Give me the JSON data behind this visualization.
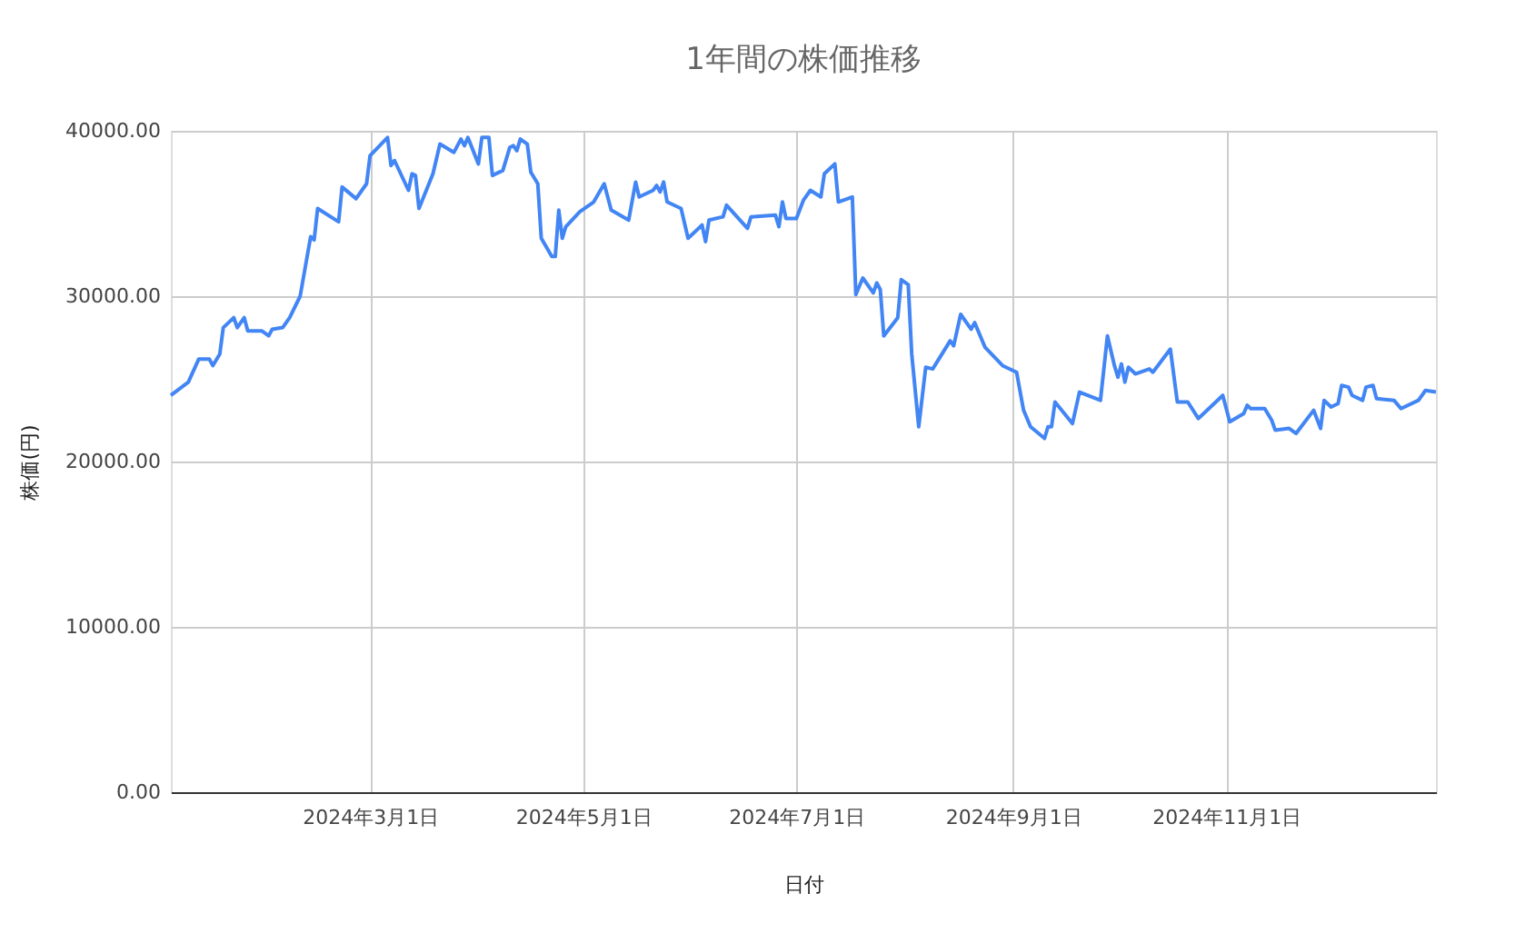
{
  "chart_data": {
    "type": "line",
    "title": "1年間の株価推移",
    "xlabel": "日付",
    "ylabel": "株価(円)",
    "x": [
      "2024-01-04",
      "2024-01-09",
      "2024-01-12",
      "2024-01-15",
      "2024-01-16",
      "2024-01-18",
      "2024-01-19",
      "2024-01-22",
      "2024-01-23",
      "2024-01-25",
      "2024-01-26",
      "2024-01-30",
      "2024-02-01",
      "2024-02-02",
      "2024-02-05",
      "2024-02-07",
      "2024-02-10",
      "2024-02-13",
      "2024-02-14",
      "2024-02-15",
      "2024-02-21",
      "2024-02-22",
      "2024-02-26",
      "2024-02-29",
      "2024-03-01",
      "2024-03-06",
      "2024-03-07",
      "2024-03-08",
      "2024-03-12",
      "2024-03-13",
      "2024-03-14",
      "2024-03-15",
      "2024-03-19",
      "2024-03-21",
      "2024-03-25",
      "2024-03-27",
      "2024-03-28",
      "2024-03-29",
      "2024-04-01",
      "2024-04-02",
      "2024-04-04",
      "2024-04-05",
      "2024-04-08",
      "2024-04-10",
      "2024-04-11",
      "2024-04-12",
      "2024-04-13",
      "2024-04-15",
      "2024-04-16",
      "2024-04-18",
      "2024-04-19",
      "2024-04-22",
      "2024-04-23",
      "2024-04-24",
      "2024-04-25",
      "2024-04-26",
      "2024-04-30",
      "2024-05-04",
      "2024-05-07",
      "2024-05-09",
      "2024-05-14",
      "2024-05-16",
      "2024-05-17",
      "2024-05-21",
      "2024-05-22",
      "2024-05-23",
      "2024-05-24",
      "2024-05-25",
      "2024-05-29",
      "2024-05-31",
      "2024-06-04",
      "2024-06-05",
      "2024-06-06",
      "2024-06-10",
      "2024-06-11",
      "2024-06-14",
      "2024-06-17",
      "2024-06-18",
      "2024-06-25",
      "2024-06-26",
      "2024-06-27",
      "2024-06-28",
      "2024-07-01",
      "2024-07-03",
      "2024-07-05",
      "2024-07-08",
      "2024-07-09",
      "2024-07-12",
      "2024-07-13",
      "2024-07-17",
      "2024-07-18",
      "2024-07-20",
      "2024-07-23",
      "2024-07-24",
      "2024-07-25",
      "2024-07-26",
      "2024-07-30",
      "2024-07-31",
      "2024-08-02",
      "2024-08-03",
      "2024-08-05",
      "2024-08-07",
      "2024-08-09",
      "2024-08-14",
      "2024-08-15",
      "2024-08-17",
      "2024-08-20",
      "2024-08-21",
      "2024-08-24",
      "2024-08-29",
      "2024-09-02",
      "2024-09-04",
      "2024-09-06",
      "2024-09-10",
      "2024-09-11",
      "2024-09-12",
      "2024-09-13",
      "2024-09-18",
      "2024-09-20",
      "2024-09-26",
      "2024-09-28",
      "2024-09-30",
      "2024-10-01",
      "2024-10-02",
      "2024-10-03",
      "2024-10-04",
      "2024-10-06",
      "2024-10-10",
      "2024-10-11",
      "2024-10-16",
      "2024-10-18",
      "2024-10-21",
      "2024-10-24",
      "2024-10-31",
      "2024-11-02",
      "2024-11-06",
      "2024-11-07",
      "2024-11-08",
      "2024-11-12",
      "2024-11-14",
      "2024-11-15",
      "2024-11-19",
      "2024-11-21",
      "2024-11-26",
      "2024-11-28",
      "2024-11-29",
      "2024-12-01",
      "2024-12-03",
      "2024-12-04",
      "2024-12-06",
      "2024-12-07",
      "2024-12-10",
      "2024-12-11",
      "2024-12-13",
      "2024-12-14",
      "2024-12-19",
      "2024-12-21",
      "2024-12-26",
      "2024-12-28",
      "2024-12-31"
    ],
    "series": [
      {
        "color": "#4285f4",
        "values": [
          24000,
          24800,
          26200,
          26200,
          25800,
          26500,
          28100,
          28700,
          28100,
          28700,
          27900,
          27900,
          27600,
          28000,
          28100,
          28700,
          30000,
          33600,
          33400,
          35300,
          34500,
          36600,
          35900,
          36800,
          38500,
          39600,
          37900,
          38200,
          36400,
          37400,
          37300,
          35300,
          37400,
          39200,
          38700,
          39500,
          39100,
          39600,
          38000,
          39600,
          39600,
          37300,
          37600,
          39000,
          39100,
          38800,
          39500,
          39200,
          37500,
          36800,
          33500,
          32400,
          32400,
          35200,
          33500,
          34200,
          35100,
          35700,
          36800,
          35200,
          34600,
          36900,
          36000,
          36400,
          36700,
          36300,
          36900,
          35700,
          35300,
          33500,
          34300,
          33300,
          34600,
          34800,
          35500,
          34800,
          34100,
          34800,
          34900,
          34200,
          35700,
          34700,
          34700,
          35800,
          36400,
          36000,
          37400,
          38000,
          35700,
          36000,
          30100,
          31100,
          30200,
          30800,
          30400,
          27600,
          28700,
          31000,
          30700,
          26500,
          22100,
          25700,
          25600,
          27300,
          27000,
          28900,
          28000,
          28400,
          26900,
          25800,
          25400,
          23100,
          22100,
          21400,
          22100,
          22100,
          23600,
          22300,
          24200,
          23700,
          27600,
          25800,
          25100,
          25900,
          24800,
          25700,
          25300,
          25600,
          25400,
          26800,
          23600,
          23600,
          22600,
          24000,
          22400,
          22900,
          23400,
          23200,
          23200,
          22500,
          21900,
          22000,
          21700,
          23100,
          22000,
          23700,
          23300,
          23500,
          24600,
          24500,
          24000,
          23700,
          24500,
          24600,
          23800,
          23700,
          23200,
          23700,
          24300,
          24200
        ]
      }
    ],
    "xlim": [
      "2024-01-04",
      "2024-12-31"
    ],
    "xticks": [
      {
        "value": "2024-03-01",
        "label": "2024年3月1日"
      },
      {
        "value": "2024-05-01",
        "label": "2024年5月1日"
      },
      {
        "value": "2024-07-01",
        "label": "2024年7月1日"
      },
      {
        "value": "2024-09-01",
        "label": "2024年9月1日"
      },
      {
        "value": "2024-11-01",
        "label": "2024年11月1日"
      }
    ],
    "ylim": [
      0,
      40000
    ],
    "yticks": [
      {
        "value": 0,
        "label": "0.00"
      },
      {
        "value": 10000,
        "label": "10000.00"
      },
      {
        "value": 20000,
        "label": "20000.00"
      },
      {
        "value": 30000,
        "label": "30000.00"
      },
      {
        "value": 40000,
        "label": "40000.00"
      }
    ],
    "grid": true,
    "marker": "none",
    "line_style": "solid"
  }
}
